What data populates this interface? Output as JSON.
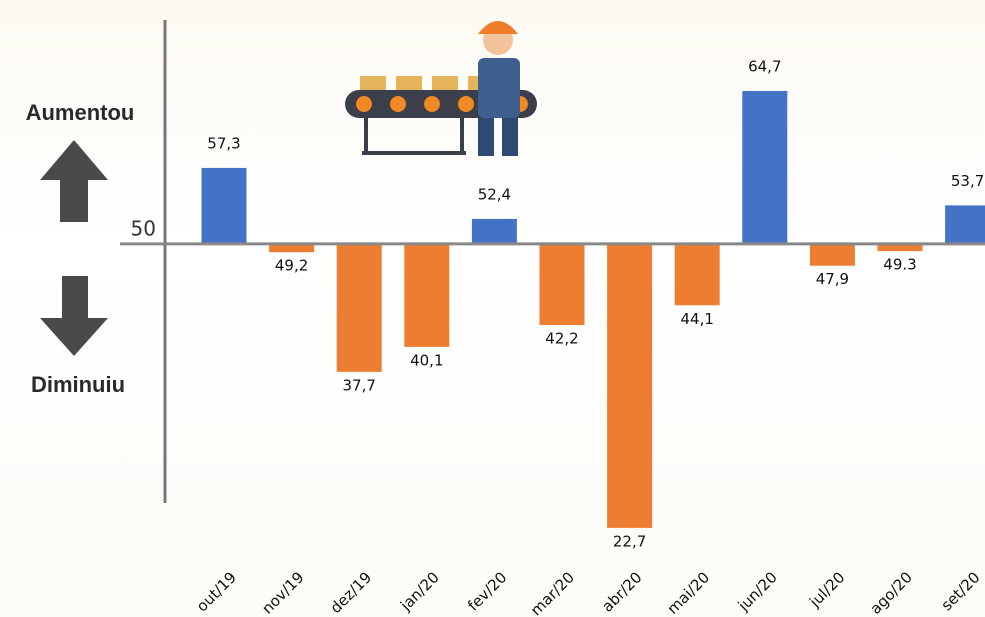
{
  "chart_data": {
    "type": "bar",
    "categories": [
      "out/19",
      "nov/19",
      "dez/19",
      "jan/20",
      "fev/20",
      "mar/20",
      "abr/20",
      "mai/20",
      "jun/20",
      "jul/20",
      "ago/20",
      "set/20"
    ],
    "values": [
      57.3,
      49.2,
      37.7,
      40.1,
      52.4,
      42.2,
      22.7,
      44.1,
      64.7,
      47.9,
      49.3,
      53.7
    ],
    "value_labels": [
      "57,3",
      "49,2",
      "37,7",
      "40,1",
      "52,4",
      "42,2",
      "22,7",
      "44,1",
      "64,7",
      "47,9",
      "49.3",
      "53,7"
    ],
    "baseline": 50,
    "colors": {
      "above": "#4472c4",
      "below": "#ed7d31"
    },
    "ylim": [
      20,
      72
    ],
    "annotations": {
      "up": "Aumentou",
      "down": "Diminuiu"
    }
  }
}
